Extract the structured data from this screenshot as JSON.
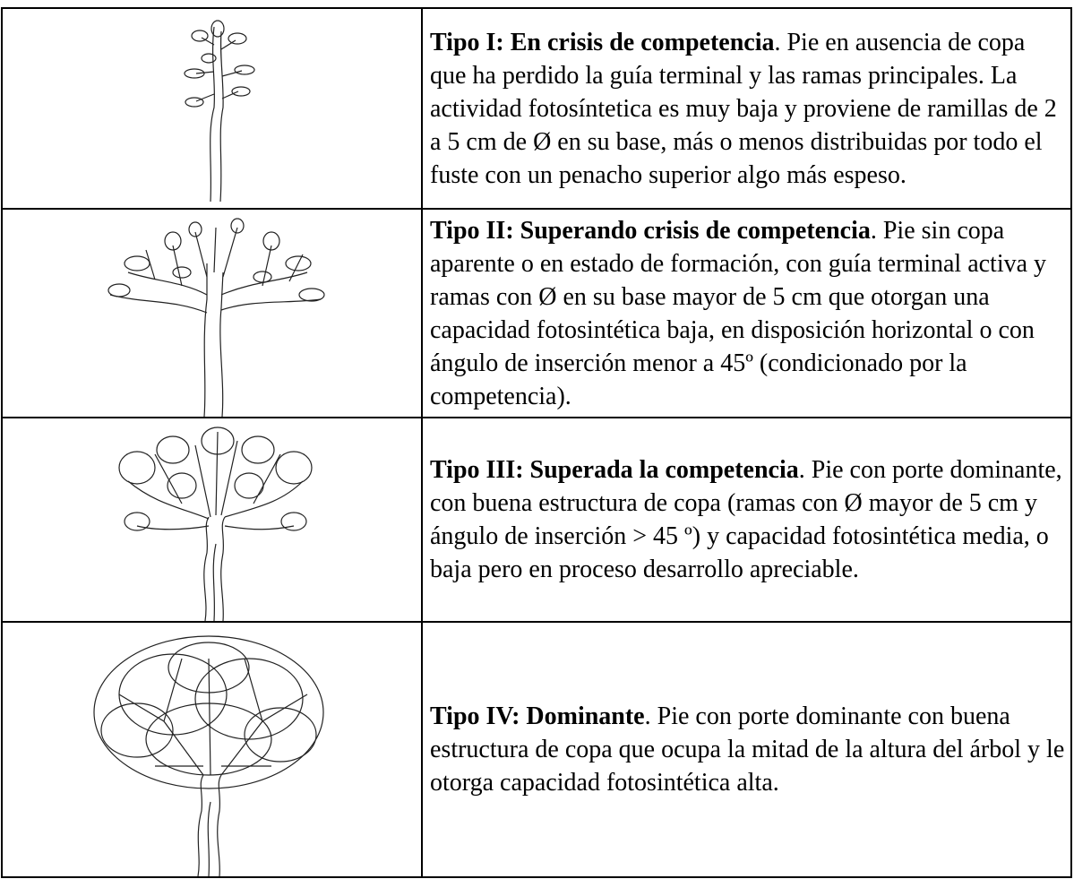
{
  "table": {
    "rows": [
      {
        "title": "Tipo I: En crisis de competencia",
        "text": ". Pie en ausencia de copa que ha perdido la guía terminal y las ramas principales. La actividad fotosíntetica es muy baja y proviene de ramillas de 2 a 5 cm de Ø en su base, más o menos distribuidas por todo el fuste con un penacho superior algo más espeso."
      },
      {
        "title": "Tipo II: Superando crisis de competencia",
        "text": ". Pie sin copa aparente o en estado de formación, con guía terminal activa y ramas con Ø en su base mayor de 5 cm que otorgan una capacidad fotosintética baja, en disposición horizontal o con ángulo de inserción menor a 45º (condicionado por la competencia)."
      },
      {
        "title": "Tipo III: Superada la competencia",
        "text": ". Pie con porte dominante, con buena estructura de copa (ramas con Ø mayor de 5 cm y ángulo de inserción > 45 º) y capacidad fotosintética media, o baja pero en proceso desarrollo apreciable."
      },
      {
        "title": "Tipo IV: Dominante",
        "text": ". Pie con porte dominante con buena estructura de copa que ocupa la mitad de la altura del árbol y le otorga capacidad fotosintética alta."
      }
    ]
  }
}
